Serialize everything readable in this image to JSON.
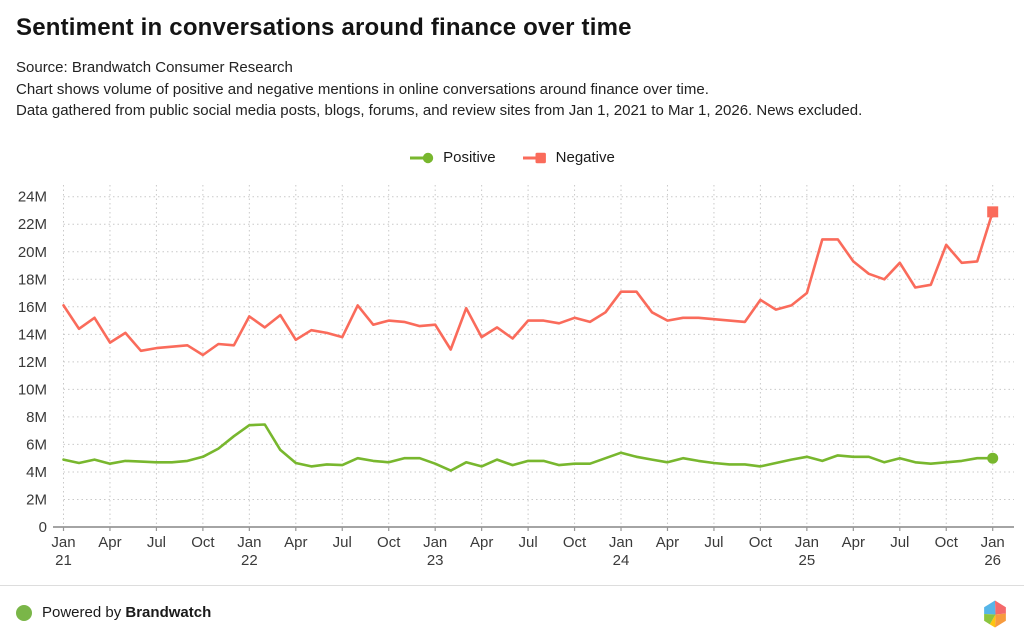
{
  "header": {
    "title": "Sentiment in conversations around finance over time",
    "source": "Source: Brandwatch Consumer Research",
    "description_line1": "Chart shows volume of positive and negative mentions in online conversations around finance over time.",
    "description_line2": "Data gathered from public social media posts, blogs, forums, and review sites from Jan 1, 2021 to Mar 1, 2026. News excluded."
  },
  "chart_data": {
    "type": "line",
    "title": "Sentiment in conversations around finance over time",
    "x_interval": "monthly",
    "x_range": "Jan 2021 to Jan 2026",
    "n_points": 61,
    "ylim_millions": [
      0,
      24
    ],
    "grid": "dotted",
    "legend_position": "top-center",
    "y_ticks": [
      {
        "value": 0,
        "label": "0"
      },
      {
        "value": 2,
        "label": "2M"
      },
      {
        "value": 4,
        "label": "4M"
      },
      {
        "value": 6,
        "label": "6M"
      },
      {
        "value": 8,
        "label": "8M"
      },
      {
        "value": 10,
        "label": "10M"
      },
      {
        "value": 12,
        "label": "12M"
      },
      {
        "value": 14,
        "label": "14M"
      },
      {
        "value": 16,
        "label": "16M"
      },
      {
        "value": 18,
        "label": "18M"
      },
      {
        "value": 20,
        "label": "20M"
      },
      {
        "value": 22,
        "label": "22M"
      },
      {
        "value": 24,
        "label": "24M"
      }
    ],
    "x_ticks": [
      {
        "i": 0,
        "label": "Jan",
        "year": "21"
      },
      {
        "i": 3,
        "label": "Apr"
      },
      {
        "i": 6,
        "label": "Jul"
      },
      {
        "i": 9,
        "label": "Oct"
      },
      {
        "i": 12,
        "label": "Jan",
        "year": "22"
      },
      {
        "i": 15,
        "label": "Apr"
      },
      {
        "i": 18,
        "label": "Jul"
      },
      {
        "i": 21,
        "label": "Oct"
      },
      {
        "i": 24,
        "label": "Jan",
        "year": "23"
      },
      {
        "i": 27,
        "label": "Apr"
      },
      {
        "i": 30,
        "label": "Jul"
      },
      {
        "i": 33,
        "label": "Oct"
      },
      {
        "i": 36,
        "label": "Jan",
        "year": "24"
      },
      {
        "i": 39,
        "label": "Apr"
      },
      {
        "i": 42,
        "label": "Jul"
      },
      {
        "i": 45,
        "label": "Oct"
      },
      {
        "i": 48,
        "label": "Jan",
        "year": "25"
      },
      {
        "i": 51,
        "label": "Apr"
      },
      {
        "i": 54,
        "label": "Jul"
      },
      {
        "i": 57,
        "label": "Oct"
      },
      {
        "i": 60,
        "label": "Jan",
        "year": "26"
      }
    ],
    "series": [
      {
        "name": "Positive",
        "color": "#78b72e",
        "marker": "circle",
        "values_millions": [
          4.9,
          4.65,
          4.9,
          4.6,
          4.8,
          4.75,
          4.7,
          4.7,
          4.8,
          5.1,
          5.7,
          6.6,
          7.4,
          7.45,
          5.6,
          4.65,
          4.4,
          4.55,
          4.5,
          5.0,
          4.8,
          4.7,
          5.0,
          5.0,
          4.6,
          4.1,
          4.7,
          4.4,
          4.9,
          4.5,
          4.8,
          4.8,
          4.5,
          4.6,
          4.6,
          5.0,
          5.4,
          5.1,
          4.9,
          4.7,
          5.0,
          4.8,
          4.65,
          4.55,
          4.55,
          4.4,
          4.65,
          4.9,
          5.1,
          4.8,
          5.2,
          5.1,
          5.1,
          4.7,
          5.0,
          4.7,
          4.6,
          4.7,
          4.8,
          5.0,
          5.0
        ]
      },
      {
        "name": "Negative",
        "color": "#fa6b5b",
        "marker": "square",
        "values_millions": [
          16.1,
          14.4,
          15.2,
          13.4,
          14.1,
          12.8,
          13.0,
          13.1,
          13.2,
          12.5,
          13.3,
          13.2,
          15.3,
          14.5,
          15.4,
          13.6,
          14.3,
          14.1,
          13.8,
          16.1,
          14.7,
          15.0,
          14.9,
          14.6,
          14.7,
          12.9,
          15.9,
          13.8,
          14.5,
          13.7,
          15.0,
          15.0,
          14.8,
          15.2,
          14.9,
          15.6,
          17.1,
          17.1,
          15.6,
          15.0,
          15.2,
          15.2,
          15.1,
          15.0,
          14.9,
          16.5,
          15.8,
          16.1,
          17.0,
          20.9,
          20.9,
          19.3,
          18.4,
          18.0,
          19.2,
          17.4,
          17.6,
          20.5,
          19.2,
          19.3,
          22.9
        ]
      }
    ]
  },
  "footer": {
    "powered_by": "Powered by",
    "brand": "Brandwatch",
    "dot_color": "#7ab648",
    "logo": "brandwatch-hexagon-logo",
    "logo_colors": {
      "blue": "#56b5e8",
      "red": "#f4696b",
      "orange": "#f79b3e",
      "yellow": "#fdc50f",
      "green": "#8bc53f"
    }
  }
}
